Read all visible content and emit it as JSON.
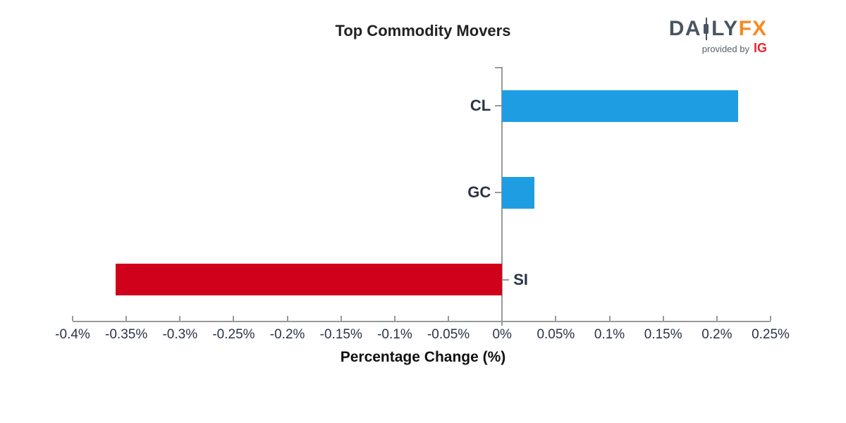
{
  "header": {
    "logo": {
      "part1": "DA",
      "part2": "LY",
      "part3": "FX",
      "provided_by": "provided by",
      "ig": "IG",
      "brand_color": "#4a5462",
      "accent_color": "#f68b1f",
      "ig_color": "#e8262d"
    }
  },
  "chart_data": {
    "type": "bar",
    "orientation": "horizontal",
    "title": "Top Commodity Movers",
    "xlabel": "Percentage Change (%)",
    "categories": [
      "CL",
      "GC",
      "SI"
    ],
    "values": [
      0.22,
      0.03,
      -0.36
    ],
    "xlim": [
      -0.4,
      0.25
    ],
    "xtick_step": 0.05,
    "xticks": [
      {
        "value": -0.4,
        "label": "-0.4%"
      },
      {
        "value": -0.35,
        "label": "-0.35%"
      },
      {
        "value": -0.3,
        "label": "-0.3%"
      },
      {
        "value": -0.25,
        "label": "-0.25%"
      },
      {
        "value": -0.2,
        "label": "-0.2%"
      },
      {
        "value": -0.15,
        "label": "-0.15%"
      },
      {
        "value": -0.1,
        "label": "-0.1%"
      },
      {
        "value": -0.05,
        "label": "-0.05%"
      },
      {
        "value": 0,
        "label": "0%"
      },
      {
        "value": 0.05,
        "label": "0.05%"
      },
      {
        "value": 0.1,
        "label": "0.1%"
      },
      {
        "value": 0.15,
        "label": "0.15%"
      },
      {
        "value": 0.2,
        "label": "0.2%"
      },
      {
        "value": 0.25,
        "label": "0.25%"
      }
    ],
    "positive_color": "#1e9de3",
    "negative_color": "#d0021b",
    "axis_color": "#999999",
    "tick_label_color": "#2a3447",
    "category_label_color": "#2a3447",
    "grid": false,
    "legend": false
  }
}
